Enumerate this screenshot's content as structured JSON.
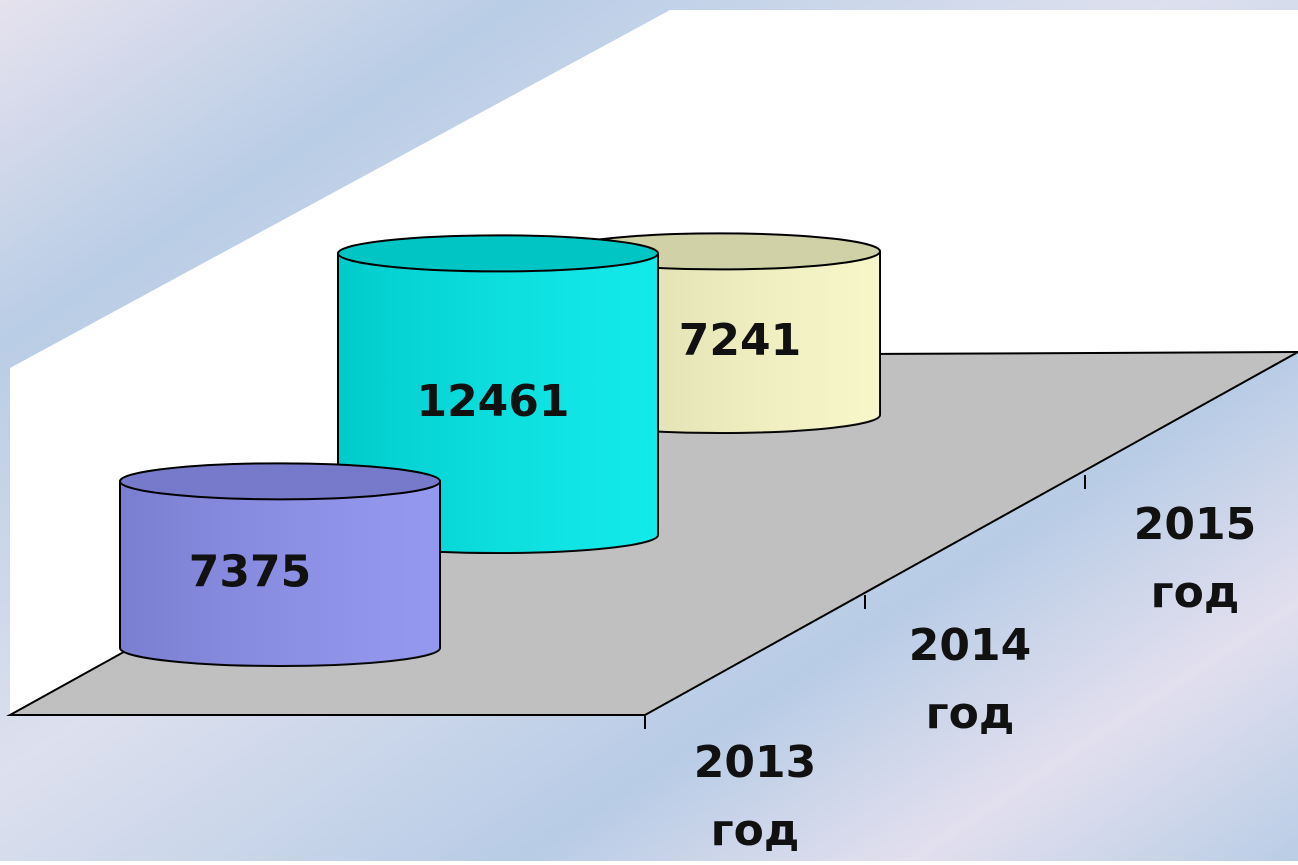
{
  "chart_data": {
    "type": "cylinder",
    "categories": [
      "2013 год",
      "2014 год",
      "2015 год"
    ],
    "values": [
      7375,
      12461,
      7241
    ],
    "colors": [
      "#8c90ee",
      "#00e8e8",
      "#f6f6c4"
    ]
  }
}
